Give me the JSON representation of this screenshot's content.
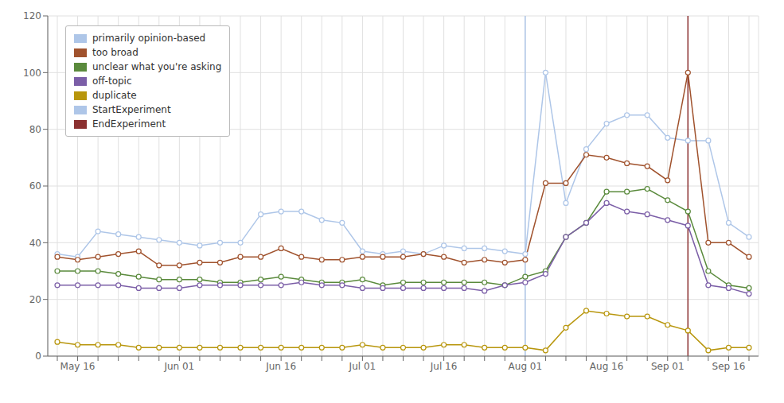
{
  "chart_data": {
    "type": "line",
    "title": "",
    "categories": [
      null,
      "May 16",
      null,
      null,
      null,
      null,
      "Jun 01",
      null,
      null,
      null,
      null,
      "Jun 16",
      null,
      null,
      null,
      "Jul 01",
      null,
      null,
      null,
      "Jul 16",
      null,
      null,
      null,
      "Aug 01",
      null,
      null,
      null,
      "Aug 16",
      null,
      null,
      "Sep 01",
      null,
      null,
      "Sep 16",
      null
    ],
    "series": [
      {
        "name": "primarily opinion-based",
        "color": "#aec6e8",
        "values": [
          36,
          35,
          44,
          43,
          42,
          41,
          40,
          39,
          40,
          40,
          50,
          51,
          51,
          48,
          47,
          37,
          36,
          37,
          36,
          39,
          38,
          38,
          37,
          36,
          100,
          54,
          73,
          82,
          85,
          85,
          77,
          76,
          76,
          47,
          42
        ]
      },
      {
        "name": "too broad",
        "color": "#a0522d",
        "values": [
          35,
          34,
          35,
          36,
          37,
          32,
          32,
          33,
          33,
          35,
          35,
          38,
          35,
          34,
          34,
          35,
          35,
          35,
          36,
          35,
          33,
          34,
          33,
          34,
          61,
          61,
          71,
          70,
          68,
          67,
          62,
          100,
          40,
          40,
          35
        ]
      },
      {
        "name": "unclear what you're asking",
        "color": "#5a8a3c",
        "values": [
          30,
          30,
          30,
          29,
          28,
          27,
          27,
          27,
          26,
          26,
          27,
          28,
          27,
          26,
          26,
          27,
          25,
          26,
          26,
          26,
          26,
          26,
          25,
          28,
          30,
          42,
          47,
          58,
          58,
          59,
          55,
          51,
          30,
          25,
          24
        ]
      },
      {
        "name": "off-topic",
        "color": "#7b5ea7",
        "values": [
          25,
          25,
          25,
          25,
          24,
          24,
          24,
          25,
          25,
          25,
          25,
          25,
          26,
          25,
          25,
          24,
          24,
          24,
          24,
          24,
          24,
          23,
          25,
          26,
          29,
          42,
          47,
          54,
          51,
          50,
          48,
          46,
          25,
          24,
          22
        ]
      },
      {
        "name": "duplicate",
        "color": "#b8960c",
        "values": [
          5,
          4,
          4,
          4,
          3,
          3,
          3,
          3,
          3,
          3,
          3,
          3,
          3,
          3,
          3,
          4,
          3,
          3,
          3,
          4,
          4,
          3,
          3,
          3,
          2,
          10,
          16,
          15,
          14,
          14,
          11,
          9,
          2,
          3,
          3
        ]
      }
    ],
    "vlines": [
      {
        "name": "StartExperiment",
        "color": "#aec6e8",
        "x": 23
      },
      {
        "name": "EndExperiment",
        "color": "#8b3030",
        "x": 31
      }
    ],
    "ylim": [
      0,
      120
    ],
    "yticks": [
      0,
      20,
      40,
      60,
      80,
      100,
      120
    ],
    "grid": true,
    "legend": "upper left",
    "marker": "circle"
  }
}
